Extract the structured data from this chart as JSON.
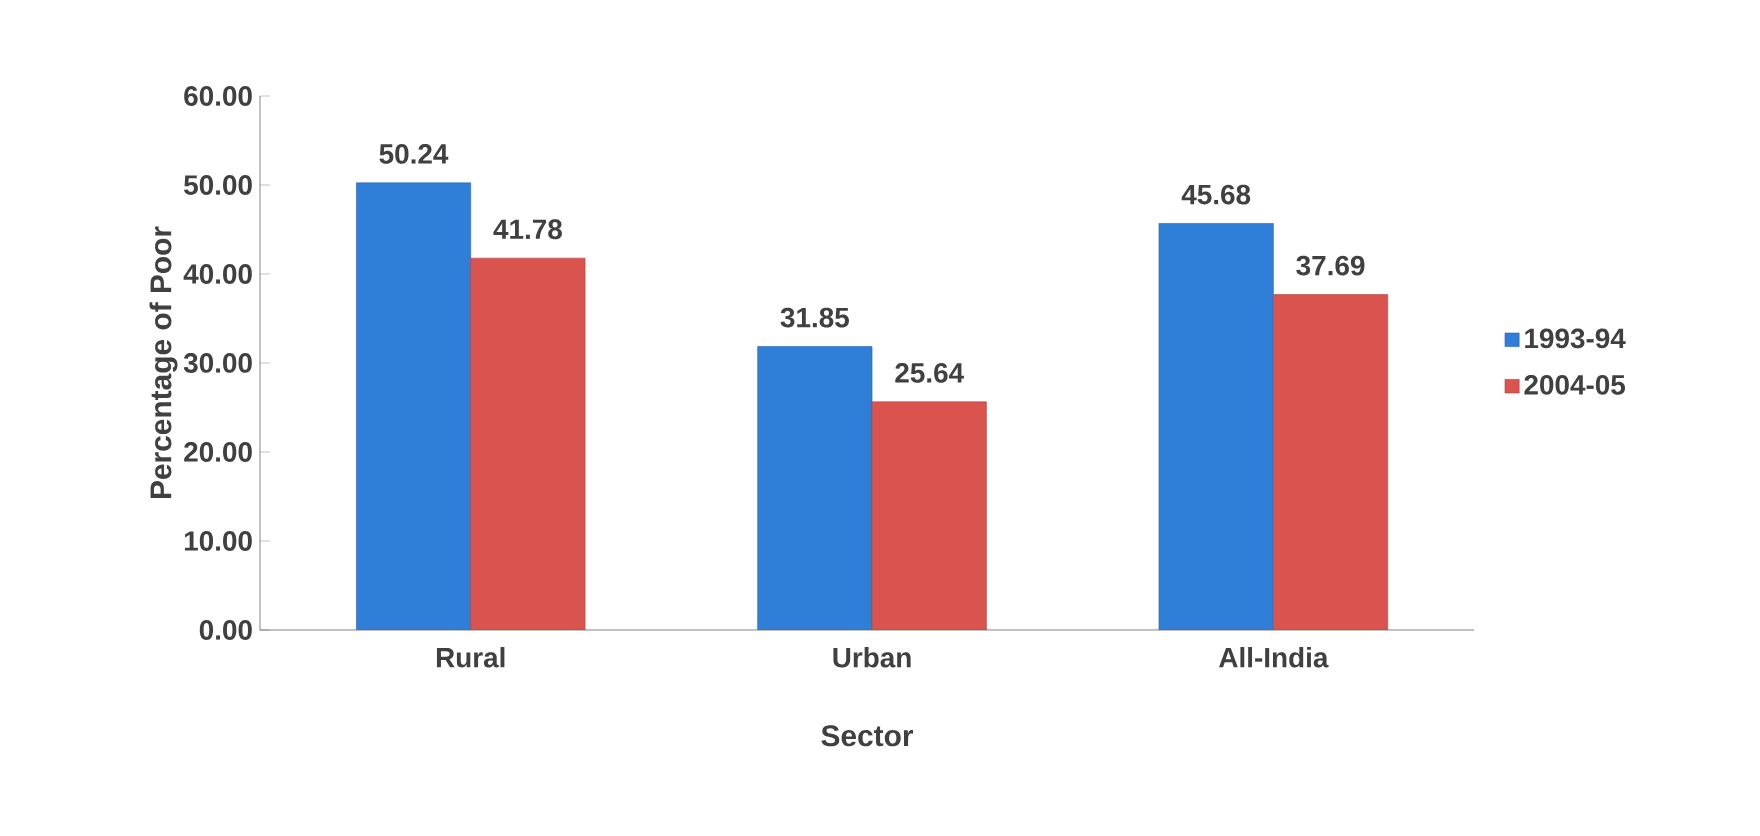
{
  "chart_data": {
    "type": "bar",
    "xlabel": "Sector",
    "ylabel": "Percentage of Poor",
    "categories": [
      "Rural",
      "Urban",
      "All-India"
    ],
    "series": [
      {
        "name": "1993-94",
        "color": "#2f7ed8",
        "values": [
          50.24,
          31.85,
          45.68
        ]
      },
      {
        "name": "2004-05",
        "color": "#d9534f",
        "values": [
          41.78,
          25.64,
          37.69
        ]
      }
    ],
    "ylim": [
      0,
      60
    ],
    "yticks": [
      {
        "value": 0,
        "label": "0.00"
      },
      {
        "value": 10,
        "label": "10.00"
      },
      {
        "value": 20,
        "label": "20.00"
      },
      {
        "value": 30,
        "label": "30.00"
      },
      {
        "value": 40,
        "label": "40.00"
      },
      {
        "value": 50,
        "label": "50.00"
      },
      {
        "value": 60,
        "label": "60.00"
      }
    ],
    "data_labels": true,
    "legend": "right",
    "grid": false
  }
}
